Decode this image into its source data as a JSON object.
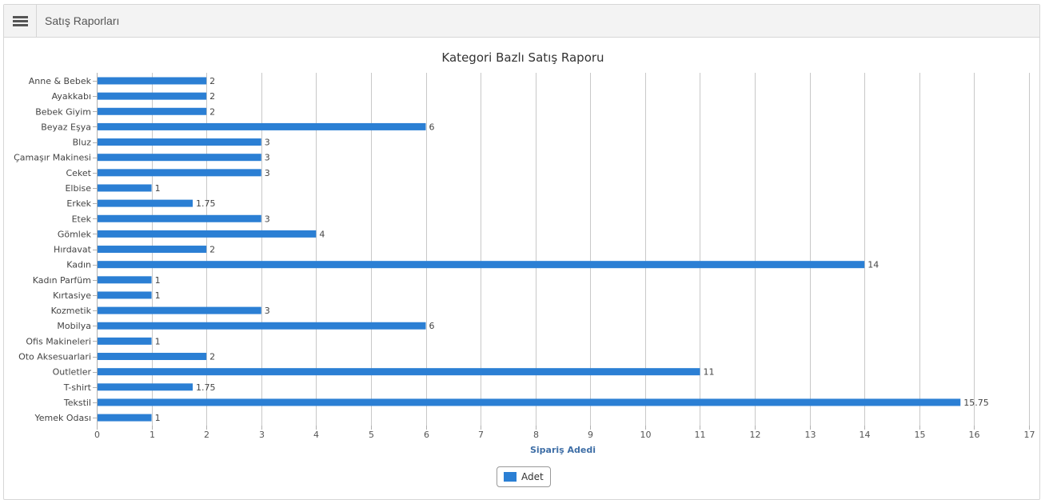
{
  "header": {
    "title": "Satış Raporları"
  },
  "colors": {
    "bar": "#2b7fd4",
    "grid": "#c8c8c8",
    "axis_title": "#3e6ea6",
    "title": "#333333"
  },
  "chart_data": {
    "type": "bar",
    "orientation": "horizontal",
    "title": "Kategori Bazlı Satış Raporu",
    "xlabel": "Sipariş Adedi",
    "ylabel": "",
    "xlim": [
      0,
      17
    ],
    "x_ticks": [
      0,
      1,
      2,
      3,
      4,
      5,
      6,
      7,
      8,
      9,
      10,
      11,
      12,
      13,
      14,
      15,
      16,
      17
    ],
    "grid": true,
    "legend_position": "bottom",
    "categories": [
      "Anne & Bebek",
      "Ayakkabı",
      "Bebek Giyim",
      "Beyaz Eşya",
      "Bluz",
      "Çamaşır Makinesi",
      "Ceket",
      "Elbise",
      "Erkek",
      "Etek",
      "Gömlek",
      "Hırdavat",
      "Kadın",
      "Kadın Parfüm",
      "Kırtasiye",
      "Kozmetik",
      "Mobilya",
      "Ofis Makineleri",
      "Oto Aksesuarlari",
      "Outletler",
      "T-shirt",
      "Tekstil",
      "Yemek Odası"
    ],
    "series": [
      {
        "name": "Adet",
        "values": [
          2,
          2,
          2,
          6,
          3,
          3,
          3,
          1,
          1.75,
          3,
          4,
          2,
          14,
          1,
          1,
          3,
          6,
          1,
          2,
          11,
          1.75,
          15.75,
          1
        ],
        "labels": [
          "2",
          "2",
          "2",
          "6",
          "3",
          "3",
          "3",
          "1",
          "1.75",
          "3",
          "4",
          "2",
          "14",
          "1",
          "1",
          "3",
          "6",
          "1",
          "2",
          "11",
          "1.75",
          "15.75",
          "1"
        ]
      }
    ]
  }
}
